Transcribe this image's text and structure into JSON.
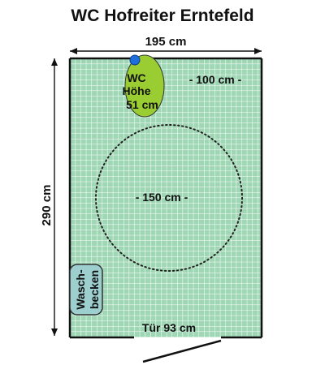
{
  "title": "WC Hofreiter Erntefeld",
  "dimensions": {
    "width_label": "195 cm",
    "height_label": "290 cm"
  },
  "room": {
    "floor_color": "#9fd7b5",
    "grid_color": "#ffffff",
    "wall_color": "#111111"
  },
  "wc": {
    "line1": "WC",
    "line2": "Höhe",
    "line3": "51 cm",
    "fill_color": "#9acd32",
    "marker_color": "#1e6fd9"
  },
  "clearance_top_label": "- 100 cm -",
  "turning_circle_label": "- 150 cm -",
  "sink": {
    "line1": "Wasch-",
    "line2": "becken",
    "fill_color": "#9ecfcf"
  },
  "door_label": "Tür 93 cm"
}
